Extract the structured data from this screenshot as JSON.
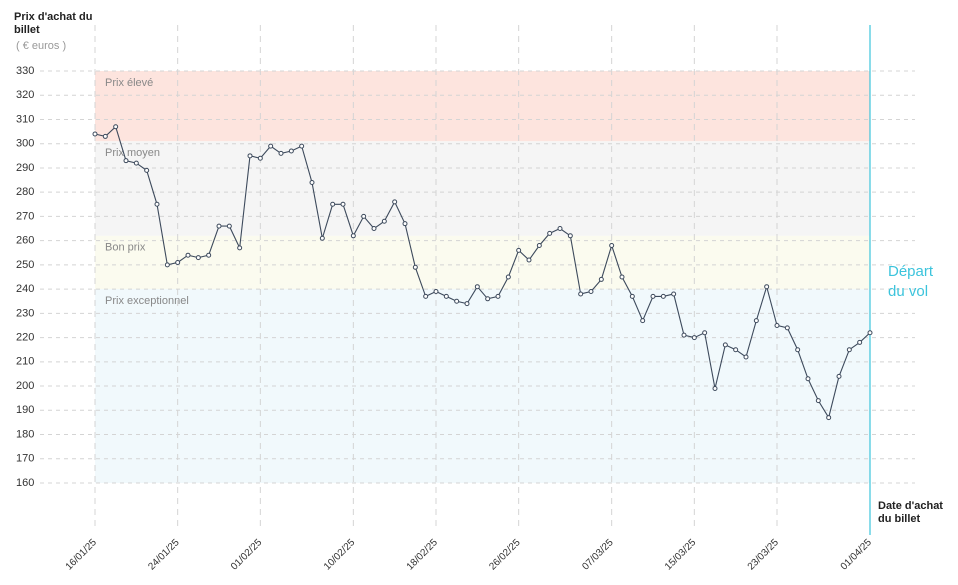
{
  "chart_data": {
    "type": "line",
    "y_label": "Prix d'achat du billet",
    "y_unit": "( € euros )",
    "x_label": "Date d'achat du billet",
    "annotation": "Départ du vol",
    "x": [
      "16/01/25",
      "17/01/25",
      "18/01/25",
      "19/01/25",
      "20/01/25",
      "21/01/25",
      "22/01/25",
      "23/01/25",
      "24/01/25",
      "25/01/25",
      "26/01/25",
      "27/01/25",
      "28/01/25",
      "29/01/25",
      "30/01/25",
      "31/01/25",
      "01/02/25",
      "02/02/25",
      "03/02/25",
      "04/02/25",
      "05/02/25",
      "06/02/25",
      "07/02/25",
      "08/02/25",
      "09/02/25",
      "10/02/25",
      "11/02/25",
      "12/02/25",
      "13/02/25",
      "14/02/25",
      "15/02/25",
      "16/02/25",
      "17/02/25",
      "18/02/25",
      "19/02/25",
      "20/02/25",
      "21/02/25",
      "22/02/25",
      "23/02/25",
      "24/02/25",
      "25/02/25",
      "26/02/25",
      "27/02/25",
      "28/02/25",
      "01/03/25",
      "02/03/25",
      "03/03/25",
      "04/03/25",
      "05/03/25",
      "06/03/25",
      "07/03/25",
      "08/03/25",
      "09/03/25",
      "10/03/25",
      "11/03/25",
      "12/03/25",
      "13/03/25",
      "14/03/25",
      "15/03/25",
      "16/03/25",
      "17/03/25",
      "18/03/25",
      "19/03/25",
      "20/03/25",
      "21/03/25",
      "22/03/25",
      "23/03/25",
      "24/03/25",
      "25/03/25",
      "26/03/25",
      "27/03/25",
      "28/03/25",
      "29/03/25",
      "30/03/25",
      "31/03/25",
      "01/04/25"
    ],
    "series": [
      {
        "name": "Prix",
        "color": "#3d4a5c",
        "values": [
          304,
          303,
          307,
          293,
          292,
          289,
          275,
          250,
          251,
          254,
          253,
          254,
          266,
          266,
          257,
          295,
          294,
          299,
          296,
          297,
          299,
          284,
          261,
          275,
          275,
          262,
          270,
          265,
          268,
          276,
          267,
          249,
          237,
          239,
          237,
          235,
          234,
          241,
          236,
          237,
          245,
          256,
          252,
          258,
          263,
          265,
          262,
          238,
          239,
          244,
          258,
          245,
          237,
          227,
          237,
          237,
          238,
          221,
          220,
          222,
          199,
          217,
          215,
          212,
          227,
          241,
          225,
          224,
          215,
          203,
          194,
          187,
          204,
          215,
          218,
          222
        ]
      }
    ],
    "xticks": [
      "16/01/25",
      "24/01/25",
      "01/02/25",
      "10/02/25",
      "18/02/25",
      "26/02/25",
      "07/03/25",
      "15/03/25",
      "23/03/25",
      "01/04/25"
    ],
    "ylim": [
      160,
      330
    ],
    "yticks": [
      160,
      170,
      180,
      190,
      200,
      210,
      220,
      230,
      240,
      250,
      260,
      270,
      280,
      290,
      300,
      310,
      320,
      330
    ],
    "grid": true,
    "bands": [
      {
        "label": "Prix élevé",
        "range": [
          301,
          330
        ],
        "color": "#fde4de"
      },
      {
        "label": "Prix moyen",
        "range": [
          262,
          301
        ],
        "color": "#f5f5f5"
      },
      {
        "label": "Bon prix",
        "range": [
          240,
          262
        ],
        "color": "#fbfbef"
      },
      {
        "label": "Prix exceptionnel",
        "range": [
          160,
          240
        ],
        "color": "#f1f9fc"
      }
    ],
    "annotation_color": "#3cc4dc"
  }
}
